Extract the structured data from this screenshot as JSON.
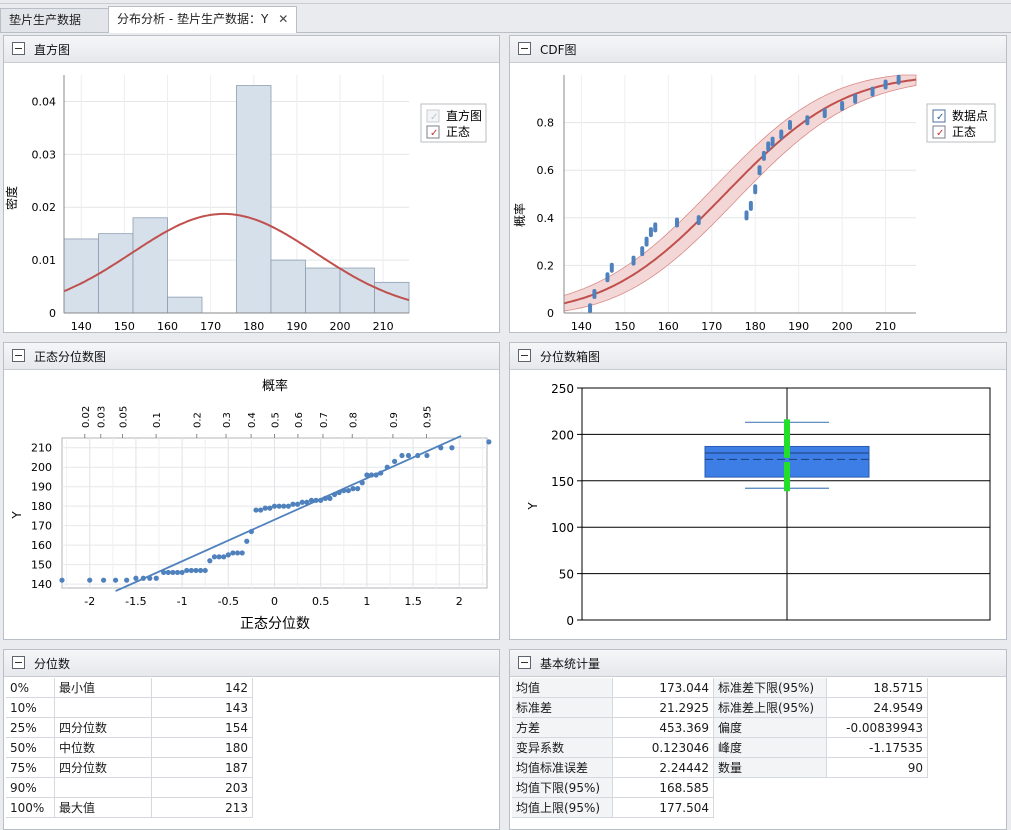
{
  "tabs": [
    "垫片生产数据",
    "分布分析 - 垫片生产数据：Y"
  ],
  "panels": {
    "histogram": {
      "title": "直方图",
      "xlabel": "Y",
      "ylabel": "密度",
      "legend": [
        "直方图",
        "正态"
      ],
      "yticks": [
        "0",
        "0.01",
        "0.02",
        "0.03",
        "0.04"
      ],
      "xticks": [
        "140",
        "150",
        "160",
        "170",
        "180",
        "190",
        "200",
        "210"
      ]
    },
    "cdf": {
      "title": "CDF图",
      "xlabel": "Y",
      "ylabel": "概率",
      "legend": [
        "数据点",
        "正态"
      ],
      "yticks": [
        "0",
        "0.2",
        "0.4",
        "0.6",
        "0.8"
      ],
      "xticks": [
        "140",
        "150",
        "160",
        "170",
        "180",
        "190",
        "200",
        "210"
      ]
    },
    "normal_quantile": {
      "title": "正态分位数图",
      "xlabel": "正态分位数",
      "ylabel": "Y",
      "toplabel": "概率",
      "prob_ticks": [
        "0.02",
        "0.03",
        "0.05",
        "0.1",
        "0.2",
        "0.3",
        "0.4",
        "0.5",
        "0.6",
        "0.7",
        "0.8",
        "0.9",
        "0.95"
      ],
      "xticks": [
        "-2",
        "-1.5",
        "-1",
        "-0.5",
        "0",
        "0.5",
        "1",
        "1.5",
        "2"
      ],
      "yticks": [
        "140",
        "150",
        "160",
        "170",
        "180",
        "190",
        "200",
        "210"
      ]
    },
    "boxplot": {
      "title": "分位数箱图",
      "ylabel": "Y",
      "yticks": [
        "0",
        "50",
        "100",
        "150",
        "200",
        "250"
      ]
    },
    "quantiles": {
      "title": "分位数",
      "rows": [
        [
          "0%",
          "最小值",
          "142"
        ],
        [
          "10%",
          "",
          "143"
        ],
        [
          "25%",
          "四分位数",
          "154"
        ],
        [
          "50%",
          "中位数",
          "180"
        ],
        [
          "75%",
          "四分位数",
          "187"
        ],
        [
          "90%",
          "",
          "203"
        ],
        [
          "100%",
          "最大值",
          "213"
        ]
      ]
    },
    "stats": {
      "title": "基本统计量",
      "left": [
        [
          "均值",
          "173.044"
        ],
        [
          "标准差",
          "21.2925"
        ],
        [
          "方差",
          "453.369"
        ],
        [
          "变异系数",
          "0.123046"
        ],
        [
          "均值标准误差",
          "2.24442"
        ],
        [
          "均值下限(95%)",
          "168.585"
        ],
        [
          "均值上限(95%)",
          "177.504"
        ]
      ],
      "right": [
        [
          "标准差下限(95%)",
          "18.5715"
        ],
        [
          "标准差上限(95%)",
          "24.9549"
        ],
        [
          "偏度",
          "-0.00839943"
        ],
        [
          "峰度",
          "-1.17535"
        ],
        [
          "数量",
          "90"
        ]
      ]
    }
  },
  "chart_data": [
    {
      "type": "bar",
      "title": "直方图",
      "xlabel": "Y",
      "ylabel": "密度",
      "bin_edges": [
        136,
        144,
        152,
        160,
        168,
        176,
        184,
        192,
        200,
        208,
        216
      ],
      "values": [
        0.014,
        0.015,
        0.018,
        0.003,
        0.0,
        0.043,
        0.01,
        0.0085,
        0.0085,
        0.0058
      ],
      "normal_fit": {
        "mean": 173.044,
        "sd": 21.2925
      },
      "xlim": [
        136,
        216
      ],
      "ylim": [
        0,
        0.045
      ]
    },
    {
      "type": "scatter",
      "title": "CDF图",
      "xlabel": "Y",
      "ylabel": "概率",
      "x": [
        142,
        143,
        146,
        147,
        152,
        154,
        155,
        156,
        157,
        162,
        167,
        178,
        179,
        180,
        181,
        182,
        183,
        184,
        186,
        188,
        192,
        196,
        200,
        203,
        207,
        210,
        213
      ],
      "values": [
        0.02,
        0.08,
        0.15,
        0.19,
        0.22,
        0.26,
        0.3,
        0.34,
        0.36,
        0.38,
        0.39,
        0.41,
        0.45,
        0.52,
        0.6,
        0.66,
        0.7,
        0.72,
        0.75,
        0.79,
        0.81,
        0.84,
        0.87,
        0.9,
        0.93,
        0.96,
        0.98
      ],
      "normal_fit": {
        "mean": 173.044,
        "sd": 21.2925
      },
      "xlim": [
        136,
        217
      ],
      "ylim": [
        0,
        1
      ]
    },
    {
      "type": "scatter",
      "title": "正态分位数图",
      "xlabel": "正态分位数",
      "ylabel": "Y",
      "x": [
        -2.3,
        -2.0,
        -1.85,
        -1.72,
        -1.6,
        -1.5,
        -1.42,
        -1.35,
        -1.28,
        -1.2,
        -1.15,
        -1.1,
        -1.05,
        -1.0,
        -0.95,
        -0.9,
        -0.85,
        -0.8,
        -0.75,
        -0.7,
        -0.65,
        -0.6,
        -0.55,
        -0.5,
        -0.45,
        -0.4,
        -0.35,
        -0.3,
        -0.25,
        -0.2,
        -0.15,
        -0.1,
        -0.05,
        0.0,
        0.05,
        0.1,
        0.15,
        0.2,
        0.25,
        0.3,
        0.35,
        0.4,
        0.45,
        0.5,
        0.55,
        0.6,
        0.65,
        0.7,
        0.75,
        0.8,
        0.85,
        0.9,
        0.95,
        1.0,
        1.05,
        1.1,
        1.15,
        1.22,
        1.3,
        1.38,
        1.45,
        1.55,
        1.65,
        1.8,
        1.92,
        2.32
      ],
      "values": [
        142,
        142,
        142,
        142,
        142,
        143,
        143,
        143,
        143,
        146,
        146,
        146,
        146,
        146,
        147,
        147,
        147,
        147,
        147,
        152,
        154,
        154,
        154,
        155,
        156,
        156,
        156,
        162,
        167,
        178,
        178,
        179,
        179,
        180,
        180,
        180,
        180,
        181,
        181,
        182,
        182,
        183,
        183,
        183,
        184,
        184,
        186,
        187,
        188,
        188,
        189,
        189,
        192,
        196,
        196,
        196,
        197,
        200,
        203,
        206,
        206,
        206,
        206,
        210,
        210,
        213
      ],
      "xlim": [
        -2.3,
        2.3
      ],
      "ylim": [
        138,
        215
      ]
    },
    {
      "type": "box",
      "title": "分位数箱图",
      "ylabel": "Y",
      "min": 142,
      "q1": 154,
      "median": 180,
      "q3": 187,
      "max": 213,
      "mean": 173.044,
      "ylim": [
        0,
        250
      ]
    }
  ]
}
